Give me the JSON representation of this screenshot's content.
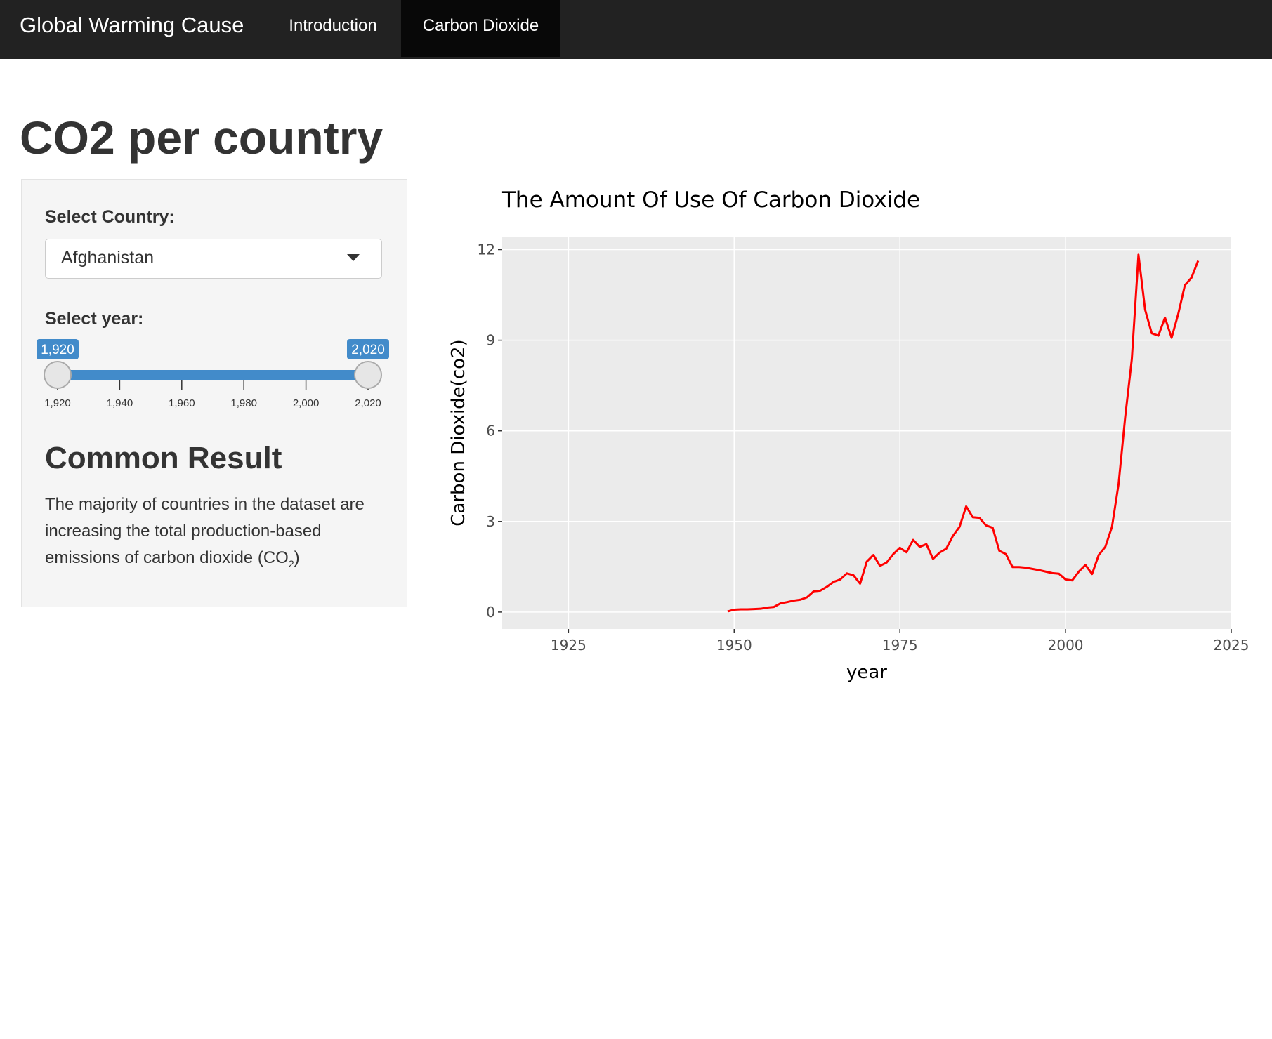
{
  "nav": {
    "brand": "Global Warming Cause",
    "tabs": [
      "Introduction",
      "Carbon Dioxide"
    ],
    "active": 1
  },
  "page_title": "CO2 per country",
  "sidebar": {
    "country_label": "Select Country:",
    "country": "Afghanistan",
    "year_label": "Select year:",
    "slider": {
      "range": [
        1920,
        2020
      ],
      "value_labels": [
        "1,920",
        "2,020"
      ],
      "ticks": [
        {
          "value": 1920,
          "label": "1,920"
        },
        {
          "value": 1940,
          "label": "1,940"
        },
        {
          "value": 1960,
          "label": "1,960"
        },
        {
          "value": 1980,
          "label": "1,980"
        },
        {
          "value": 2000,
          "label": "2,000"
        },
        {
          "value": 2020,
          "label": "2,020"
        }
      ]
    },
    "result_title": "Common Result",
    "result_text": [
      "The majority of countries in the dataset are increasing the total production-based emissions of carbon dioxide (CO",
      "2",
      ")"
    ]
  },
  "chart_data": {
    "type": "line",
    "title": "The Amount Of Use Of Carbon Dioxide",
    "x_label": "year",
    "y_label": "Carbon Dioxide(co2)",
    "color": "#ff0000",
    "x": [
      1949,
      1950,
      1951,
      1952,
      1953,
      1954,
      1955,
      1956,
      1957,
      1958,
      1959,
      1960,
      1961,
      1962,
      1963,
      1964,
      1965,
      1966,
      1967,
      1968,
      1969,
      1970,
      1971,
      1972,
      1973,
      1974,
      1975,
      1976,
      1977,
      1978,
      1979,
      1980,
      1981,
      1982,
      1983,
      1984,
      1985,
      1986,
      1987,
      1988,
      1989,
      1990,
      1991,
      1992,
      1993,
      1994,
      1995,
      1996,
      1997,
      1998,
      1999,
      2000,
      2001,
      2002,
      2003,
      2004,
      2005,
      2006,
      2007,
      2008,
      2009,
      2010,
      2011,
      2012,
      2013,
      2014,
      2015,
      2016,
      2017,
      2018,
      2019,
      2020
    ],
    "values": [
      0.02,
      0.08,
      0.09,
      0.09,
      0.1,
      0.11,
      0.15,
      0.17,
      0.29,
      0.33,
      0.38,
      0.41,
      0.49,
      0.69,
      0.71,
      0.84,
      1.0,
      1.08,
      1.28,
      1.22,
      0.94,
      1.67,
      1.89,
      1.53,
      1.64,
      1.92,
      2.13,
      1.98,
      2.39,
      2.16,
      2.25,
      1.76,
      1.97,
      2.1,
      2.52,
      2.82,
      3.5,
      3.14,
      3.12,
      2.87,
      2.79,
      2.03,
      1.92,
      1.49,
      1.49,
      1.47,
      1.43,
      1.39,
      1.34,
      1.29,
      1.27,
      1.08,
      1.05,
      1.34,
      1.56,
      1.26,
      1.89,
      2.16,
      2.82,
      4.24,
      6.46,
      8.38,
      11.83,
      10.01,
      9.23,
      9.15,
      9.75,
      9.08,
      9.87,
      10.82,
      11.07,
      11.63
    ],
    "xlim": [
      1915,
      2025
    ],
    "ylim": [
      -0.56,
      12.43
    ],
    "xticks": [
      1925,
      1950,
      1975,
      2000,
      2025
    ],
    "yticks": [
      0,
      3,
      6,
      9,
      12
    ],
    "grid": true
  }
}
